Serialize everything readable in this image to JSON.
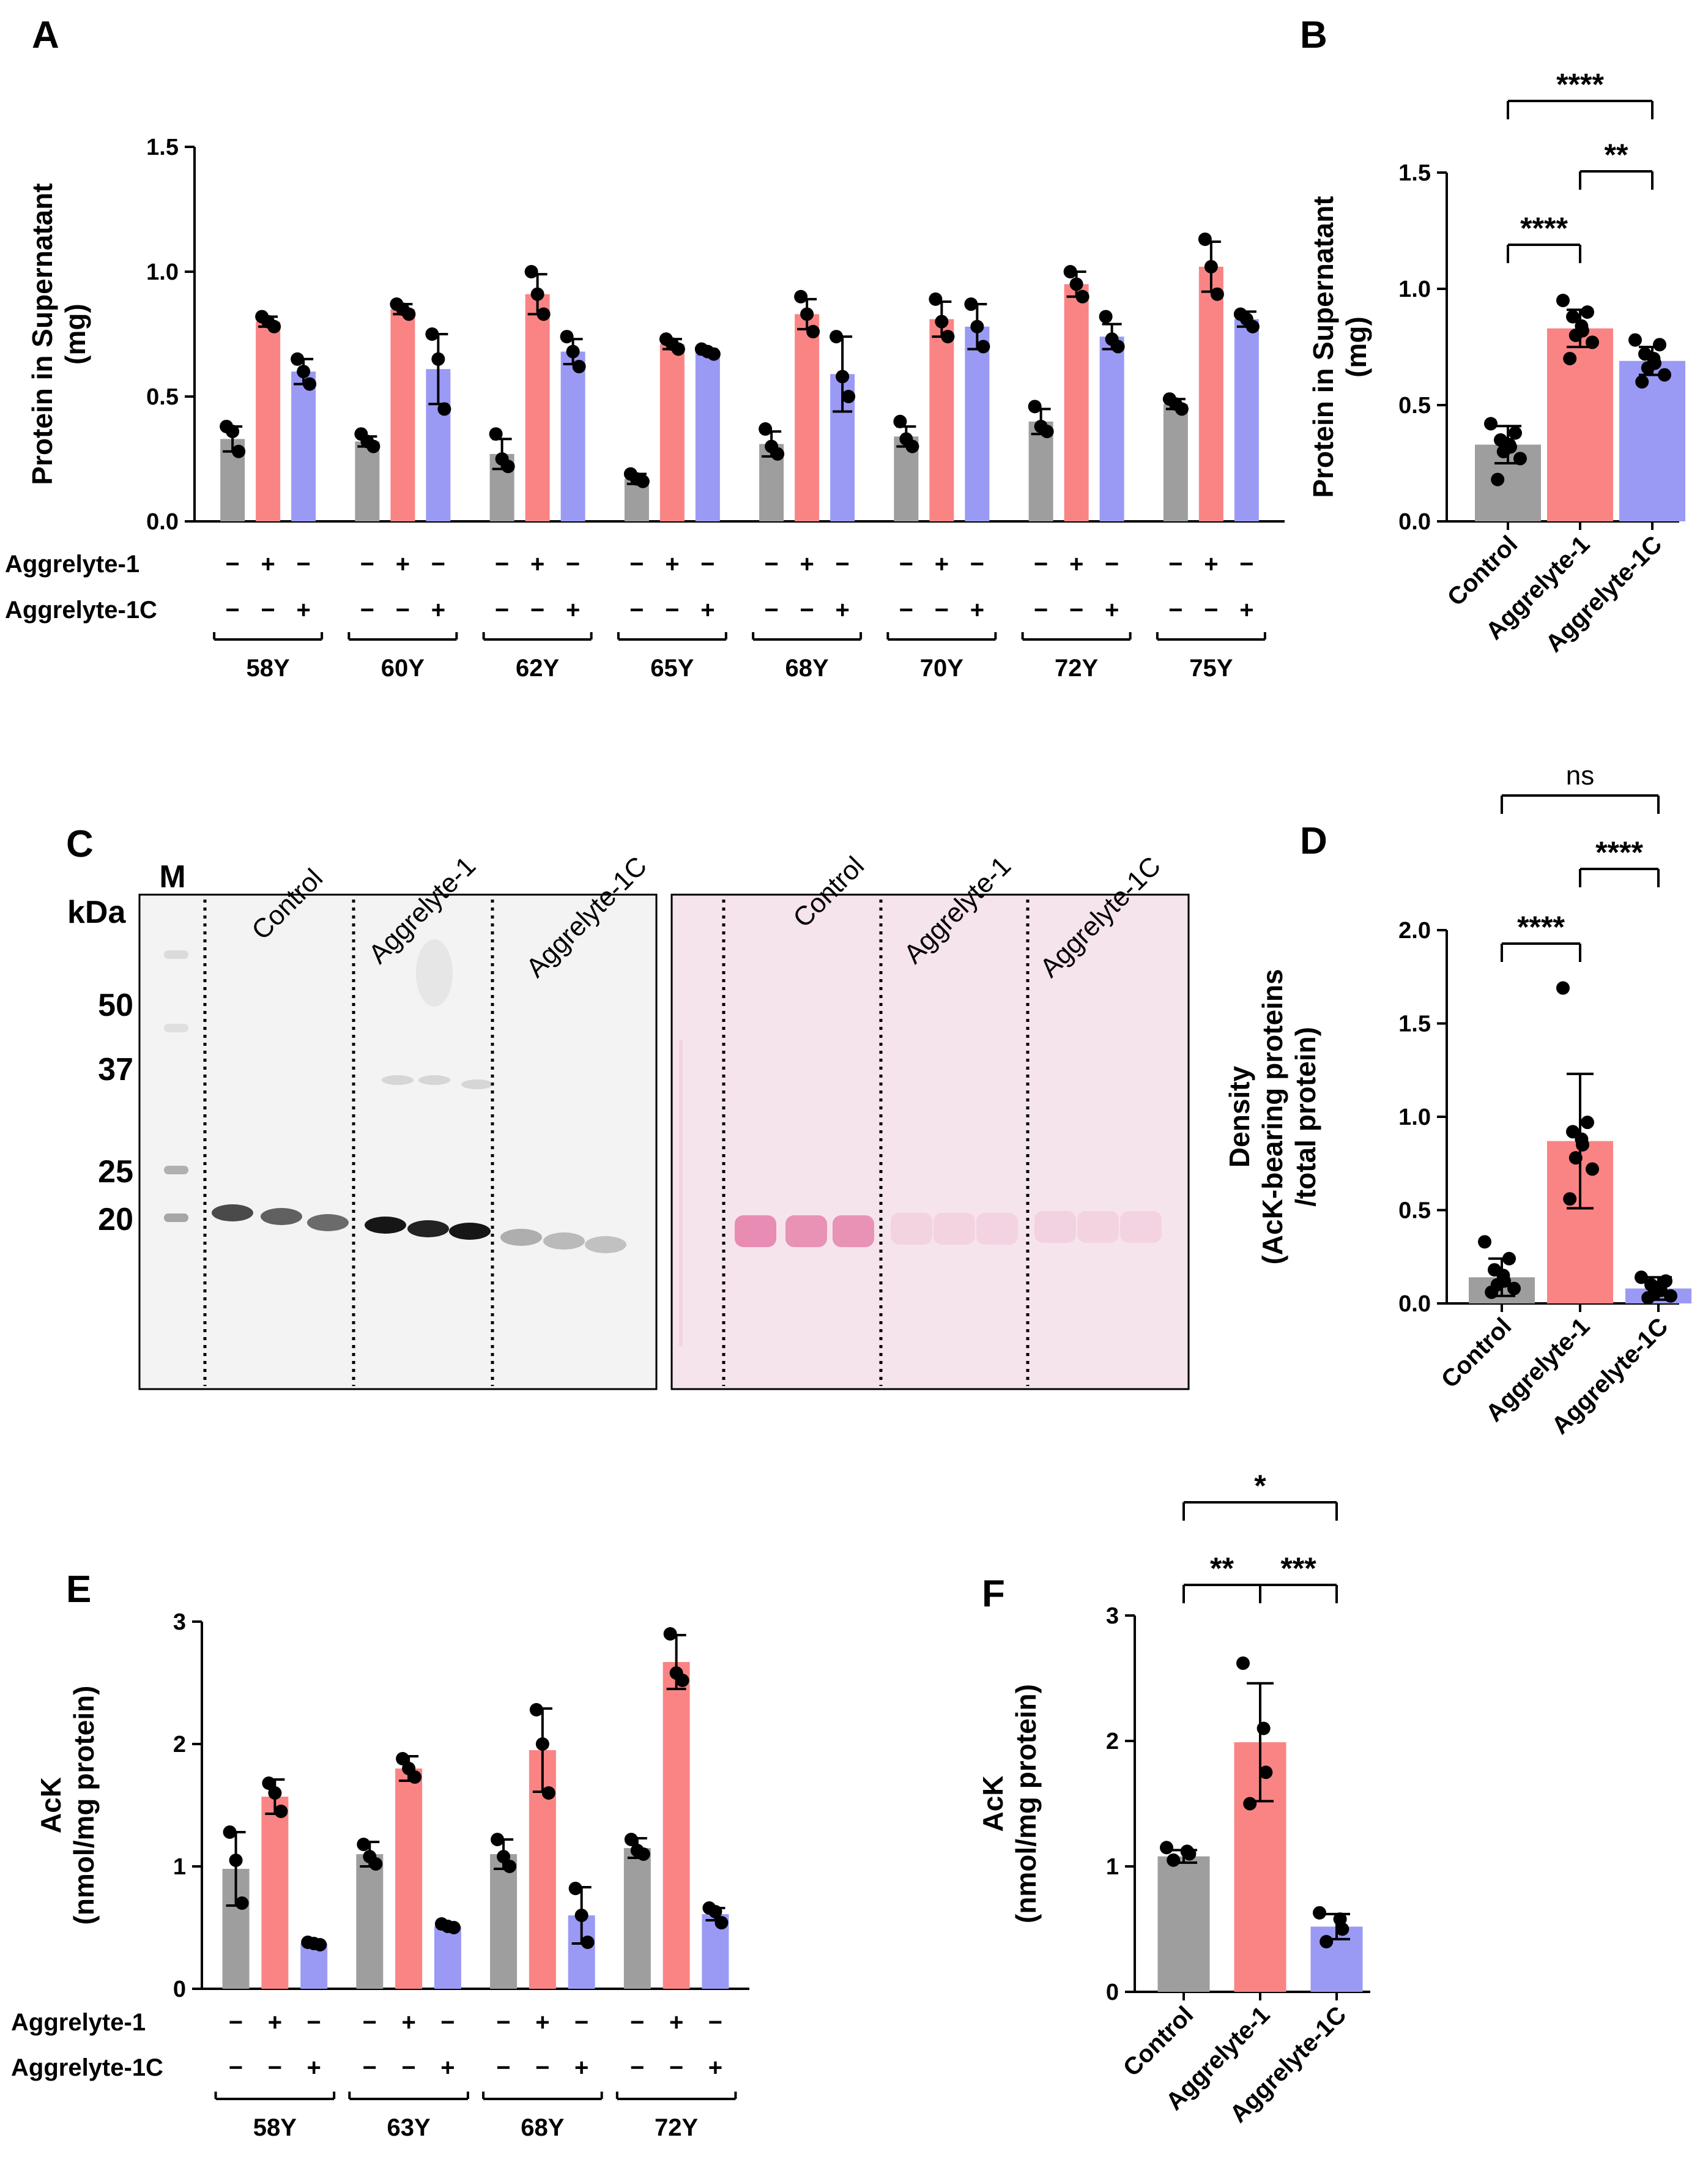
{
  "colors": {
    "control": "#9e9e9e",
    "aggrelyte1": "#fa8484",
    "aggrelyte1c": "#9a9af5",
    "ponceau": "#f6e4ec",
    "ponceau_band": "#e36fa0",
    "blot_bg": "#f3f3f3"
  },
  "treatments": {
    "row1": "Aggrelyte-1",
    "row2": "Aggrelyte-1C",
    "row1_signs": [
      "−",
      "+",
      "−"
    ],
    "row2_signs": [
      "−",
      "−",
      "+"
    ]
  },
  "chart_data": [
    {
      "id": "A",
      "panel_label": "A",
      "type": "bar",
      "ylabel": [
        "Protein in Supernatant",
        "(mg)"
      ],
      "ylim": [
        0,
        1.5
      ],
      "yticks": [
        "0.0",
        "0.5",
        "1.0",
        "1.5"
      ],
      "categories": [
        "58Y",
        "60Y",
        "62Y",
        "65Y",
        "68Y",
        "70Y",
        "72Y",
        "75Y"
      ],
      "series": [
        {
          "name": "Control",
          "values": [
            0.33,
            0.32,
            0.27,
            0.17,
            0.31,
            0.34,
            0.4,
            0.47
          ],
          "sd": [
            0.05,
            0.02,
            0.06,
            0.02,
            0.05,
            0.04,
            0.05,
            0.02
          ],
          "points": [
            [
              0.38,
              0.36,
              0.28
            ],
            [
              0.35,
              0.32,
              0.3
            ],
            [
              0.35,
              0.25,
              0.22
            ],
            [
              0.19,
              0.17,
              0.16
            ],
            [
              0.37,
              0.3,
              0.27
            ],
            [
              0.4,
              0.33,
              0.3
            ],
            [
              0.46,
              0.38,
              0.36
            ],
            [
              0.49,
              0.47,
              0.45
            ]
          ]
        },
        {
          "name": "Aggrelyte-1",
          "values": [
            0.8,
            0.85,
            0.91,
            0.71,
            0.83,
            0.81,
            0.95,
            1.02
          ],
          "sd": [
            0.02,
            0.02,
            0.08,
            0.02,
            0.06,
            0.07,
            0.05,
            0.1
          ],
          "points": [
            [
              0.82,
              0.8,
              0.78
            ],
            [
              0.87,
              0.85,
              0.83
            ],
            [
              1.0,
              0.91,
              0.83
            ],
            [
              0.73,
              0.71,
              0.69
            ],
            [
              0.9,
              0.83,
              0.76
            ],
            [
              0.89,
              0.8,
              0.74
            ],
            [
              1.0,
              0.95,
              0.9
            ],
            [
              1.13,
              1.02,
              0.91
            ]
          ]
        },
        {
          "name": "Aggrelyte-1C",
          "values": [
            0.6,
            0.61,
            0.68,
            0.68,
            0.59,
            0.78,
            0.74,
            0.81
          ],
          "sd": [
            0.05,
            0.14,
            0.05,
            0.01,
            0.15,
            0.09,
            0.05,
            0.03
          ],
          "points": [
            [
              0.65,
              0.6,
              0.55
            ],
            [
              0.75,
              0.65,
              0.45
            ],
            [
              0.74,
              0.68,
              0.62
            ],
            [
              0.69,
              0.68,
              0.67
            ],
            [
              0.74,
              0.58,
              0.5
            ],
            [
              0.87,
              0.78,
              0.7
            ],
            [
              0.82,
              0.73,
              0.7
            ],
            [
              0.83,
              0.81,
              0.78
            ]
          ]
        }
      ]
    },
    {
      "id": "B",
      "panel_label": "B",
      "type": "bar",
      "ylabel": [
        "Protein in Supernatant",
        "(mg)"
      ],
      "ylim": [
        0,
        1.5
      ],
      "yticks": [
        "0.0",
        "0.5",
        "1.0",
        "1.5"
      ],
      "categories": [
        "Control",
        "Aggrelyte-1",
        "Aggrelyte-1C"
      ],
      "values": [
        0.33,
        0.83,
        0.69
      ],
      "sd": [
        0.08,
        0.08,
        0.06
      ],
      "points": [
        [
          0.42,
          0.38,
          0.35,
          0.33,
          0.32,
          0.3,
          0.27,
          0.18
        ],
        [
          0.95,
          0.9,
          0.88,
          0.84,
          0.82,
          0.8,
          0.77,
          0.7
        ],
        [
          0.78,
          0.76,
          0.72,
          0.7,
          0.68,
          0.66,
          0.63,
          0.6
        ]
      ],
      "significance": [
        {
          "label": "****",
          "from": 0,
          "to": 2
        },
        {
          "label": "**",
          "from": 1,
          "to": 2
        },
        {
          "label": "****",
          "from": 0,
          "to": 1
        }
      ]
    },
    {
      "id": "D",
      "panel_label": "D",
      "type": "bar",
      "ylabel": [
        "Density",
        "(AcK-bearing proteins",
        "/total protein)"
      ],
      "ylim": [
        0,
        2.0
      ],
      "yticks": [
        "0.0",
        "0.5",
        "1.0",
        "1.5",
        "2.0"
      ],
      "categories": [
        "Control",
        "Aggrelyte-1",
        "Aggrelyte-1C"
      ],
      "values": [
        0.14,
        0.87,
        0.08
      ],
      "sd": [
        0.1,
        0.36,
        0.06
      ],
      "points": [
        [
          0.33,
          0.24,
          0.18,
          0.15,
          0.12,
          0.1,
          0.08,
          0.06
        ],
        [
          1.69,
          0.97,
          0.92,
          0.88,
          0.85,
          0.78,
          0.72,
          0.56
        ],
        [
          0.14,
          0.12,
          0.1,
          0.09,
          0.07,
          0.05,
          0.04,
          0.03
        ]
      ],
      "significance": [
        {
          "label": "ns",
          "from": 0,
          "to": 2
        },
        {
          "label": "****",
          "from": 1,
          "to": 2
        },
        {
          "label": "****",
          "from": 0,
          "to": 1
        }
      ]
    },
    {
      "id": "E",
      "panel_label": "E",
      "type": "bar",
      "ylabel": [
        "AcK",
        "(nmol/mg protein)"
      ],
      "ylim": [
        0,
        3
      ],
      "yticks": [
        "0",
        "1",
        "2",
        "3"
      ],
      "categories": [
        "58Y",
        "63Y",
        "68Y",
        "72Y"
      ],
      "series": [
        {
          "name": "Control",
          "values": [
            0.98,
            1.1,
            1.1,
            1.15
          ],
          "sd": [
            0.3,
            0.1,
            0.12,
            0.08
          ],
          "points": [
            [
              1.28,
              1.05,
              0.7
            ],
            [
              1.18,
              1.08,
              1.02
            ],
            [
              1.22,
              1.08,
              1.0
            ],
            [
              1.22,
              1.13,
              1.1
            ]
          ]
        },
        {
          "name": "Aggrelyte-1",
          "values": [
            1.57,
            1.8,
            1.95,
            2.67
          ],
          "sd": [
            0.14,
            0.1,
            0.34,
            0.22
          ],
          "points": [
            [
              1.68,
              1.6,
              1.45
            ],
            [
              1.88,
              1.8,
              1.73
            ],
            [
              2.28,
              2.0,
              1.6
            ],
            [
              2.9,
              2.58,
              2.52
            ]
          ]
        },
        {
          "name": "Aggrelyte-1C",
          "values": [
            0.37,
            0.51,
            0.6,
            0.61
          ],
          "sd": [
            0.02,
            0.02,
            0.23,
            0.05
          ],
          "points": [
            [
              0.38,
              0.37,
              0.36
            ],
            [
              0.53,
              0.51,
              0.5
            ],
            [
              0.82,
              0.6,
              0.38
            ],
            [
              0.66,
              0.63,
              0.54
            ]
          ]
        }
      ]
    },
    {
      "id": "F",
      "panel_label": "F",
      "type": "bar",
      "ylabel": [
        "AcK",
        "(nmol/mg protein)"
      ],
      "ylim": [
        0,
        3
      ],
      "yticks": [
        "0",
        "1",
        "2",
        "3"
      ],
      "categories": [
        "Control",
        "Aggrelyte-1",
        "Aggrelyte-1C"
      ],
      "values": [
        1.08,
        1.99,
        0.52
      ],
      "sd": [
        0.05,
        0.47,
        0.1
      ],
      "points": [
        [
          1.15,
          1.12,
          1.1,
          1.05
        ],
        [
          2.62,
          2.1,
          1.75,
          1.5
        ],
        [
          0.63,
          0.58,
          0.5,
          0.4
        ]
      ],
      "significance": [
        {
          "label": "*",
          "from": 0,
          "to": 2
        },
        {
          "label": "**",
          "from": 0,
          "to": 1
        },
        {
          "label": "***",
          "from": 1,
          "to": 2
        }
      ]
    }
  ],
  "blot": {
    "panel_label": "C",
    "marker_label": "M",
    "unit_label": "kDa",
    "markers": [
      "50",
      "37",
      "25",
      "20"
    ],
    "groups_left": [
      "Control",
      "Aggrelyte-1",
      "Aggrelyte-1C"
    ],
    "groups_right": [
      "Control",
      "Aggrelyte-1",
      "Aggrelyte-1C"
    ]
  }
}
